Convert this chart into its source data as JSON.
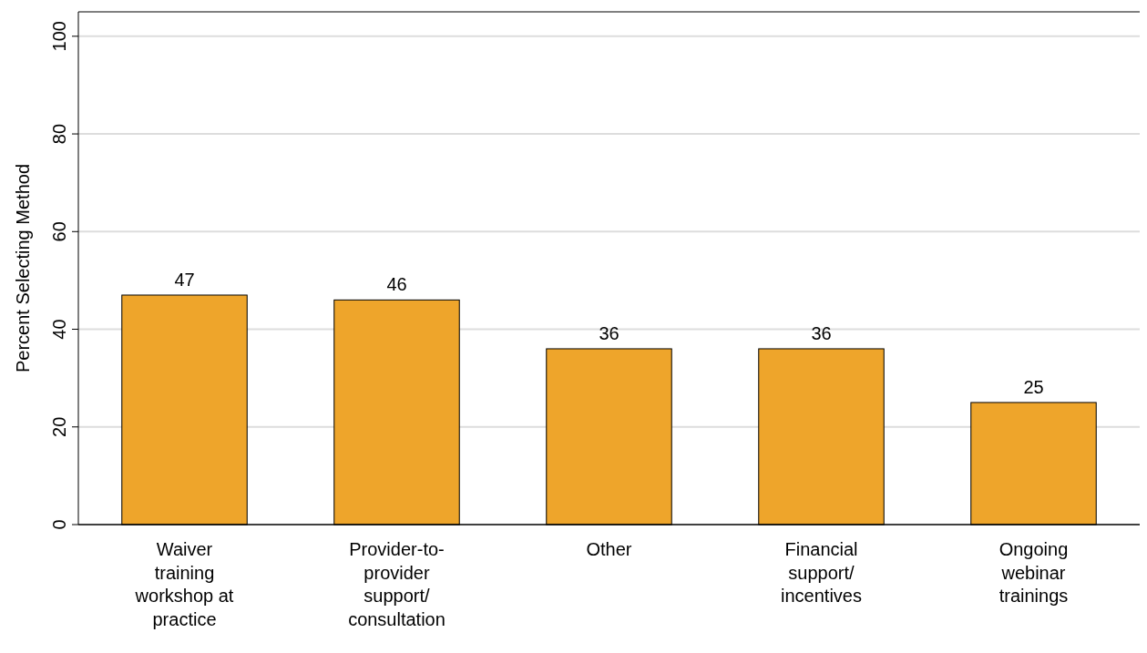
{
  "chart_data": {
    "type": "bar",
    "ylabel": "Percent Selecting Method",
    "categories": [
      "Waiver training workshop at practice",
      "Provider-to-provider support/consultation",
      "Other",
      "Financial support/incentives",
      "Ongoing webinar trainings"
    ],
    "values": [
      47,
      46,
      36,
      36,
      25
    ],
    "color": "#eea52b",
    "data_labels": true,
    "ylim": [
      0,
      105
    ],
    "yticks": [
      0,
      20,
      40,
      60,
      80,
      100
    ],
    "grid": "y"
  }
}
